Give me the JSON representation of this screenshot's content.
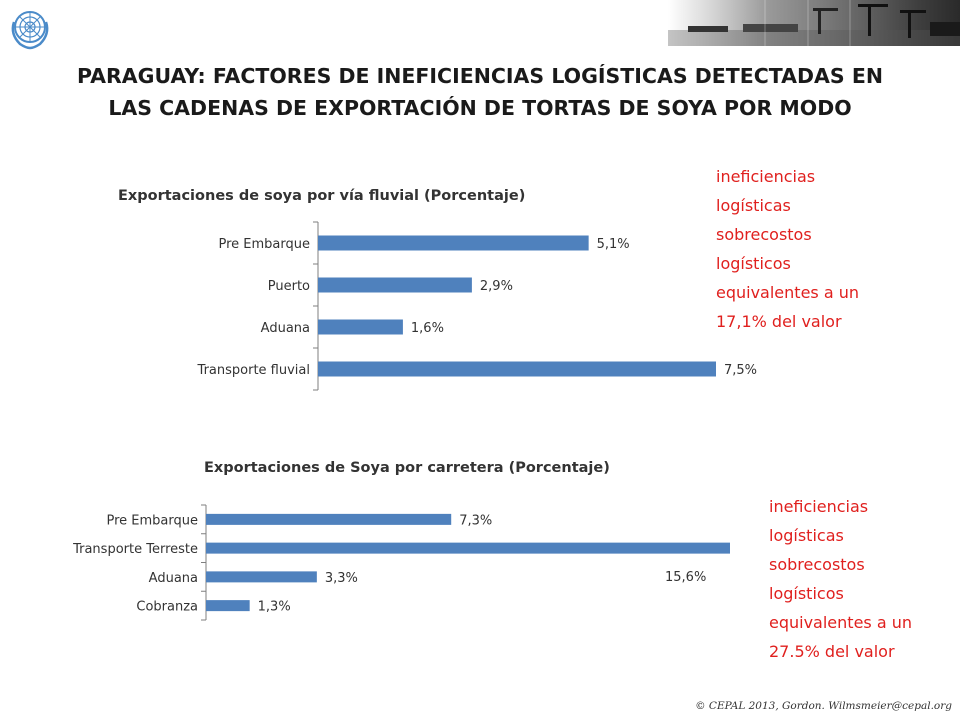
{
  "header": {
    "title_lines": [
      "PARAGUAY: FACTORES DE INEFICIENCIAS LOGÍSTICAS DETECTADAS EN",
      "LAS CADENAS DE EXPORTACIÓN DE TORTAS DE SOYA POR MODO"
    ]
  },
  "icons": {
    "logo": "un-emblem-icon",
    "banner": "port-photo-strip"
  },
  "colors": {
    "bar": "#4f81bd",
    "note": "#e0201e"
  },
  "chart_data": [
    {
      "type": "bar",
      "orientation": "horizontal",
      "title": "Exportaciones de soya por vía fluvial (Porcentaje)",
      "categories": [
        "Pre Embarque",
        "Puerto",
        "Aduana",
        "Transporte fluvial"
      ],
      "values": [
        5.1,
        2.9,
        1.6,
        7.5
      ],
      "value_labels": [
        "5,1%",
        "2,9%",
        "1,6%",
        "7,5%"
      ],
      "xlim": [
        0,
        7.5
      ],
      "grid": false,
      "legend": "none"
    },
    {
      "type": "bar",
      "orientation": "horizontal",
      "title": "Exportaciones de Soya  por carretera (Porcentaje)",
      "categories": [
        "Pre Embarque",
        "Transporte Terreste",
        "Aduana",
        "Cobranza"
      ],
      "values": [
        7.3,
        15.6,
        3.3,
        1.3
      ],
      "value_labels": [
        "7,3%",
        "15,6%",
        "3,3%",
        "1,3%"
      ],
      "xlim": [
        0,
        15.6
      ],
      "grid": false,
      "legend": "none"
    }
  ],
  "notes": [
    {
      "lines": [
        "ineficiencias",
        "logísticas",
        "sobrecostos",
        "logísticos",
        "equivalentes a un",
        "17,1% del valor"
      ]
    },
    {
      "lines": [
        "ineficiencias",
        "logísticas",
        "sobrecostos",
        "logísticos",
        "equivalentes a un",
        "27.5% del valor"
      ]
    }
  ],
  "footer": {
    "credit": "© CEPAL 2013, Gordon. Wilmsmeier@cepal.org"
  }
}
